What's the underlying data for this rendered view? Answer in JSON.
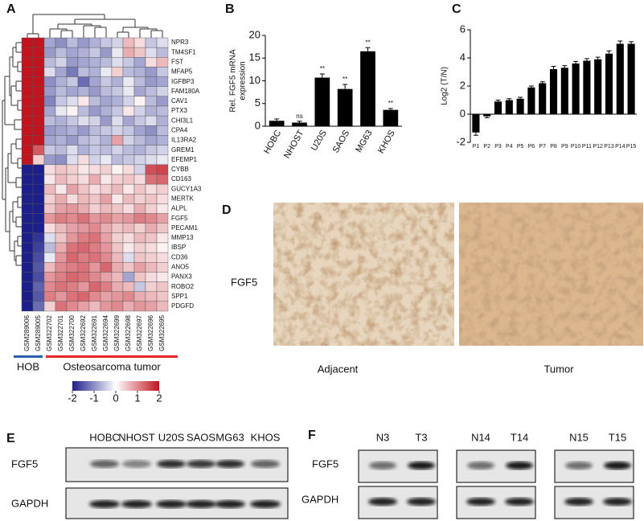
{
  "chart_data": [
    {
      "type": "heatmap",
      "panel": "A",
      "rows": [
        "NPR3",
        "TM4SF1",
        "FST",
        "MFAP5",
        "IGFBP3",
        "FAM180A",
        "CAV1",
        "PTX3",
        "CHI3L1",
        "CPA4",
        "IL13RA2",
        "GREM1",
        "EFEMP1",
        "CYBB",
        "CD163",
        "GUCY1A3",
        "MERTK",
        "ALPL",
        "FGF5",
        "PECAM1",
        "MMP13",
        "IBSP",
        "CD36",
        "ANO5",
        "PANX3",
        "ROBO2",
        "SPP1",
        "PDGFD"
      ],
      "columns": [
        "GSM289006",
        "GSM289005",
        "GSM322702",
        "GSM322701",
        "GSM322700",
        "GSM322692",
        "GSM322691",
        "GSM322694",
        "GSM322699",
        "GSM322698",
        "GSM322697",
        "GSM322696",
        "GSM322695"
      ],
      "values": [
        [
          2,
          2,
          -0.8,
          -1,
          -0.6,
          -0.9,
          -0.7,
          -0.5,
          -0.4,
          0.6,
          0.3,
          -0.5,
          -0.3
        ],
        [
          2,
          2,
          -0.9,
          -0.6,
          -0.8,
          -0.7,
          -0.5,
          -0.9,
          -0.2,
          0.7,
          0.5,
          -0.3,
          -0.6
        ],
        [
          2,
          2,
          -0.6,
          -0.4,
          -0.9,
          -0.8,
          -0.7,
          -0.6,
          -0.3,
          -0.5,
          -0.8,
          0.3,
          0.6
        ],
        [
          2,
          2,
          -0.3,
          -0.8,
          -1.2,
          -0.6,
          -0.7,
          -0.2,
          0.4,
          -0.6,
          -0.7,
          -0.9,
          -0.5
        ],
        [
          2,
          2,
          -1,
          -0.7,
          -0.5,
          -1.3,
          -0.8,
          -0.5,
          -0.7,
          -0.2,
          -0.6,
          -0.9,
          -0.8
        ],
        [
          2,
          2,
          -0.9,
          -0.6,
          -0.8,
          -0.7,
          -0.9,
          -0.6,
          -0.5,
          -0.2,
          -0.8,
          -0.6,
          -0.4
        ],
        [
          2,
          2,
          -1.1,
          -0.5,
          -0.3,
          0.2,
          -0.6,
          -0.8,
          -0.7,
          -0.4,
          0.1,
          -0.6,
          -0.9
        ],
        [
          2,
          2,
          -0.8,
          -0.2,
          0.1,
          -0.6,
          -0.9,
          -0.7,
          -0.5,
          0.2,
          -0.4,
          -0.7,
          -0.6
        ],
        [
          2,
          2,
          -0.6,
          -0.7,
          -0.5,
          -0.3,
          -0.4,
          -0.9,
          -0.3,
          -0.8,
          -0.5,
          -0.3,
          -0.7
        ],
        [
          2,
          2,
          -0.9,
          -0.8,
          -0.7,
          -0.9,
          -0.6,
          -0.5,
          -0.4,
          -0.5,
          -0.8,
          -1,
          -0.6
        ],
        [
          2,
          2,
          -0.8,
          -0.7,
          -0.9,
          -0.6,
          -0.5,
          -0.7,
          0.8,
          -0.4,
          -0.6,
          -0.8,
          -0.7
        ],
        [
          2,
          1.4,
          -0.5,
          -0.6,
          -0.3,
          -0.7,
          -0.5,
          -0.6,
          -0.4,
          -0.6,
          -0.7,
          -0.5,
          -0.4
        ],
        [
          2,
          0.4,
          -0.9,
          -1,
          -0.3,
          0.3,
          -0.4,
          -0.2,
          -0.6,
          -0.5,
          -0.4,
          -0.3,
          -0.2
        ],
        [
          -2,
          -2,
          0.3,
          0.5,
          0.4,
          0.2,
          0.3,
          0.4,
          0.1,
          0.3,
          -0.4,
          1.5,
          1.6
        ],
        [
          -2,
          -2,
          0.2,
          0.6,
          0.4,
          0.3,
          0.7,
          0.2,
          0.4,
          0.5,
          0.3,
          1.2,
          1.3
        ],
        [
          -2,
          -2,
          0.6,
          0.2,
          0.8,
          0.5,
          0.3,
          0.4,
          0.6,
          0.2,
          0.5,
          0.3,
          0.4
        ],
        [
          -2,
          -2,
          0.4,
          0.7,
          0.3,
          0.6,
          0.5,
          0.8,
          0.2,
          0.6,
          0.4,
          0.5,
          0.3
        ],
        [
          -2,
          -2,
          0.5,
          0.8,
          0.9,
          0.7,
          0.4,
          0.6,
          0.5,
          0.3,
          0.7,
          0.4,
          0.2
        ],
        [
          -2,
          -2,
          0.9,
          1.1,
          1,
          1.2,
          0.9,
          1,
          0.8,
          0.9,
          1.1,
          1,
          0.8
        ],
        [
          -2,
          -2,
          0.3,
          0.6,
          0.8,
          0.9,
          1,
          0.7,
          0.5,
          0.6,
          0.4,
          0.7,
          0.5
        ],
        [
          -2,
          -1.8,
          -0.3,
          0.5,
          0.9,
          1.1,
          1.2,
          0.8,
          0.4,
          0.3,
          0.6,
          0.5,
          0.2
        ],
        [
          -2,
          -1.7,
          -0.6,
          0.7,
          1.2,
          1.3,
          1.1,
          0.9,
          0.5,
          0.2,
          0.4,
          0.3,
          0.1
        ],
        [
          -2,
          -1.6,
          -0.2,
          0.9,
          1.3,
          1.1,
          1.2,
          1,
          0.6,
          -0.3,
          0.5,
          0.4,
          0.3
        ],
        [
          -2,
          -1.5,
          0.6,
          1,
          1.1,
          1.2,
          0.9,
          1.3,
          0.7,
          0.5,
          0.8,
          0.6,
          0.4
        ],
        [
          -2,
          -1.6,
          0.9,
          1.1,
          1.3,
          1.2,
          1,
          0.8,
          0.6,
          -0.8,
          0.5,
          0.3,
          0.2
        ],
        [
          -2,
          -1.4,
          1,
          1.2,
          1.1,
          0.9,
          1.3,
          1.1,
          0.7,
          0.6,
          -0.5,
          0.4,
          0.5
        ],
        [
          -2,
          -1.5,
          1.1,
          0.9,
          1.2,
          1.3,
          1,
          0.8,
          0.9,
          1,
          0.7,
          0.6,
          0.5
        ],
        [
          -2,
          -1.3,
          0.4,
          1.2,
          1,
          0.8,
          0.6,
          0.9,
          1,
          0.7,
          0.9,
          0.8,
          0.6
        ]
      ],
      "highlight_rows": [
        18
      ],
      "highlight_color": "#e31a1c",
      "groups": [
        {
          "name": "HOB",
          "color": "#2b5fad",
          "columns": [
            0,
            1
          ]
        },
        {
          "name": "Osteosarcoma tumor",
          "color": "#e8262a",
          "columns": [
            2,
            12
          ]
        }
      ],
      "color_scale": [
        "#1c1f8a",
        "#ffffff",
        "#c01520"
      ],
      "clim": [
        -2,
        2
      ],
      "cticks": [
        -2,
        -1,
        0,
        1,
        2
      ]
    },
    {
      "type": "bar",
      "panel": "B",
      "ylabel": [
        "Rel. FGF5 mRNA",
        "expression"
      ],
      "categories": [
        "HOBC",
        "NHOST",
        "U20S",
        "SAOS",
        "MG63",
        "KHOS"
      ],
      "values": [
        1.2,
        0.8,
        10.7,
        8.2,
        16.5,
        3.6
      ],
      "errors": [
        0.4,
        0.3,
        0.8,
        1.0,
        0.8,
        0.3
      ],
      "annotations": [
        null,
        "ns",
        "**",
        "**",
        "**",
        "**"
      ],
      "color": "#000000",
      "ylim": [
        0,
        20
      ],
      "yticks": [
        0,
        5,
        10,
        15,
        20
      ]
    },
    {
      "type": "bar",
      "panel": "C",
      "ylabel": "Log2 (T/N)",
      "categories": [
        "P1",
        "P2",
        "P3",
        "P4",
        "P5",
        "P6",
        "P7",
        "P8",
        "P9",
        "P10",
        "P11",
        "P12",
        "P13",
        "P14",
        "P15"
      ],
      "values": [
        -1.3,
        -0.15,
        0.9,
        1.0,
        1.1,
        1.9,
        2.2,
        3.2,
        3.3,
        3.6,
        3.8,
        3.9,
        4.3,
        5.0,
        5.0
      ],
      "errors": [
        0.2,
        0.1,
        0.1,
        0.1,
        0.1,
        0.1,
        0.1,
        0.2,
        0.15,
        0.15,
        0.15,
        0.15,
        0.2,
        0.2,
        0.15
      ],
      "color": "#000000",
      "ylim": [
        -2,
        6
      ],
      "yticks": [
        -2,
        0,
        2,
        4,
        6
      ]
    }
  ],
  "panel_d": {
    "label": "D",
    "row_label": "FGF5",
    "columns": [
      "Adjacent",
      "Tumor"
    ]
  },
  "panel_e": {
    "label": "E",
    "lanes": [
      "HOBC",
      "NHOST",
      "U20S",
      "SAOS",
      "MG63",
      "KHOS"
    ],
    "rows": [
      "FGF5",
      "GAPDH"
    ]
  },
  "panel_f": {
    "label": "F",
    "lanes": [
      [
        "N3",
        "T3"
      ],
      [
        "N14",
        "T14"
      ],
      [
        "N15",
        "T15"
      ]
    ],
    "rows": [
      "FGF5",
      "GAPDH"
    ]
  }
}
